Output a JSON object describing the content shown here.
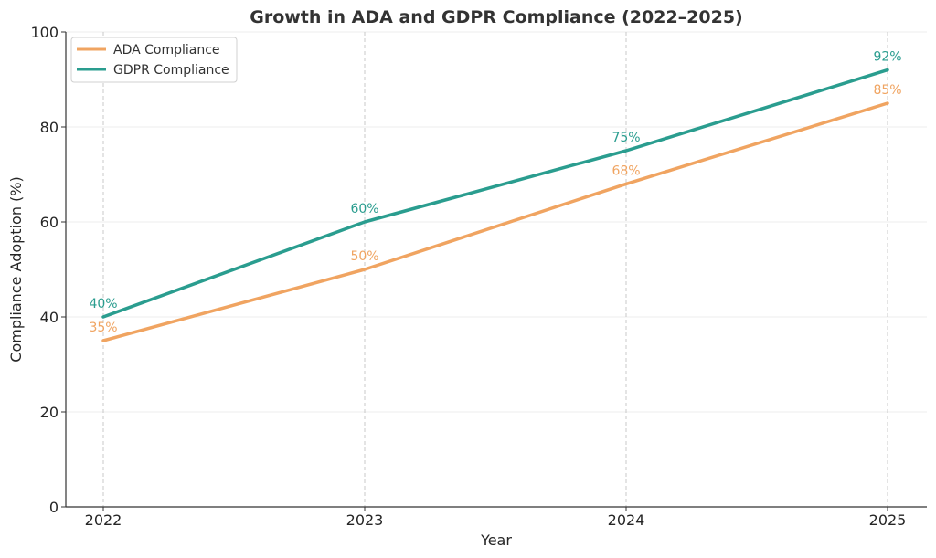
{
  "chart_data": {
    "type": "line",
    "title": "Growth in ADA and GDPR Compliance (2022–2025)",
    "xlabel": "Year",
    "ylabel": "Compliance Adoption (%)",
    "categories": [
      "2022",
      "2023",
      "2024",
      "2025"
    ],
    "ylim": [
      0,
      100
    ],
    "yticks": [
      0,
      20,
      40,
      60,
      80,
      100
    ],
    "grid": true,
    "legend_position": "top-left",
    "series": [
      {
        "name": "ADA Compliance",
        "color": "#f0a461",
        "values": [
          35,
          50,
          68,
          85
        ],
        "labels": [
          "35%",
          "50%",
          "68%",
          "85%"
        ]
      },
      {
        "name": "GDPR Compliance",
        "color": "#2a9d8f",
        "values": [
          40,
          60,
          75,
          92
        ],
        "labels": [
          "40%",
          "60%",
          "75%",
          "92%"
        ]
      }
    ]
  }
}
